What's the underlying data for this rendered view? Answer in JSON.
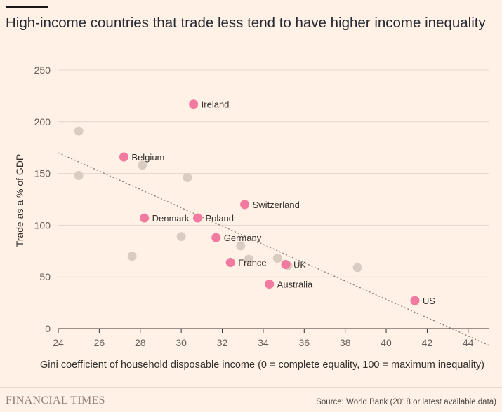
{
  "chart_data": {
    "type": "scatter",
    "title": "High-income countries that trade less tend to have higher income inequality",
    "xlabel": "Gini coefficient of household disposable income (0 = complete equality, 100 = maximum inequality)",
    "ylabel": "Trade as a % of GDP",
    "xlim": [
      24,
      45
    ],
    "ylim": [
      0,
      250
    ],
    "x_ticks": [
      "24",
      "26",
      "28",
      "30",
      "32",
      "34",
      "36",
      "38",
      "40",
      "42",
      "44"
    ],
    "y_ticks": [
      "0",
      "50",
      "100",
      "150",
      "200",
      "250"
    ],
    "grid": "horizontal",
    "colors": {
      "highlight": "#f2799f",
      "other": "#d9cdc3",
      "trend": "#8a7f78"
    },
    "highlighted": [
      {
        "label": "Ireland",
        "x": 30.6,
        "y": 217
      },
      {
        "label": "Belgium",
        "x": 27.2,
        "y": 166
      },
      {
        "label": "Switzerland",
        "x": 33.1,
        "y": 120
      },
      {
        "label": "Denmark",
        "x": 28.2,
        "y": 107
      },
      {
        "label": "Poland",
        "x": 30.8,
        "y": 107
      },
      {
        "label": "Germany",
        "x": 31.7,
        "y": 88
      },
      {
        "label": "France",
        "x": 32.4,
        "y": 64
      },
      {
        "label": "UK",
        "x": 35.1,
        "y": 62
      },
      {
        "label": "Australia",
        "x": 34.3,
        "y": 43
      },
      {
        "label": "US",
        "x": 41.4,
        "y": 27
      }
    ],
    "others": [
      {
        "x": 25.0,
        "y": 191
      },
      {
        "x": 25.0,
        "y": 148
      },
      {
        "x": 28.1,
        "y": 158
      },
      {
        "x": 30.3,
        "y": 146
      },
      {
        "x": 30.0,
        "y": 89
      },
      {
        "x": 27.6,
        "y": 70
      },
      {
        "x": 32.9,
        "y": 80
      },
      {
        "x": 33.3,
        "y": 67
      },
      {
        "x": 34.7,
        "y": 68
      },
      {
        "x": 35.2,
        "y": 61
      },
      {
        "x": 38.6,
        "y": 59
      }
    ],
    "trend": {
      "x": [
        24,
        45
      ],
      "y": [
        170,
        -16
      ]
    }
  },
  "footer": {
    "logo": "FINANCIAL TIMES",
    "source": "Source: World Bank (2018 or latest available data)"
  }
}
